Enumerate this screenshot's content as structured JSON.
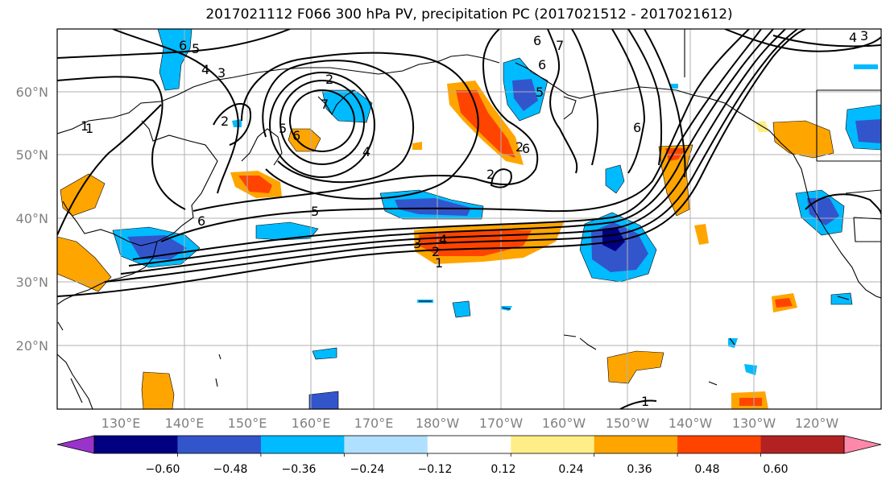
{
  "title": "2017021112 F066 300 hPa PV, precipitation PC (2017021512 - 2017021612)",
  "lat_labels": [
    "60°N",
    "50°N",
    "40°N",
    "30°N",
    "20°N"
  ],
  "lon_labels": [
    "130°E",
    "140°E",
    "150°E",
    "160°E",
    "170°E",
    "180°W",
    "170°W",
    "160°W",
    "150°W",
    "140°W",
    "130°W",
    "120°W"
  ],
  "contour_labels": [
    "6",
    "5",
    "4",
    "3",
    "2",
    "1",
    "7",
    "6",
    "5",
    "4",
    "2",
    "1",
    "4",
    "3",
    "2",
    "1",
    "6",
    "2",
    "6",
    "7",
    "1",
    "6",
    "5",
    "6",
    "6",
    "2",
    "5",
    "4",
    "3"
  ],
  "colorbar": {
    "colors": [
      "#9933cc",
      "#000080",
      "#3355cc",
      "#00bbff",
      "#b0e0ff",
      "#ffffff",
      "#ffee88",
      "#ffa500",
      "#ff4400",
      "#b22222",
      "#ff88aa"
    ],
    "ticks": [
      "−0.60",
      "−0.48",
      "−0.36",
      "−0.24",
      "−0.12",
      "0.12",
      "0.24",
      "0.36",
      "0.48",
      "0.60"
    ]
  }
}
